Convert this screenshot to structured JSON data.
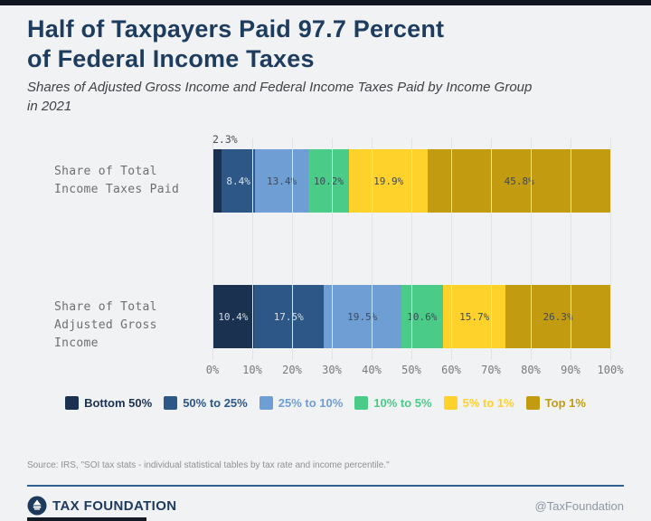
{
  "colors": {
    "background": "#f1f2f4",
    "accent_navy": "#1d3c5e",
    "divider_blue": "#2e6093",
    "grid_line": "#e2e3e7"
  },
  "header": {
    "title": "Half of Taxpayers Paid 97.7 Percent\nof Federal Income Taxes",
    "subtitle": "Shares of Adjusted Gross Income and Federal Income Taxes Paid by Income Group\nin 2021"
  },
  "chart_data": {
    "type": "bar",
    "orientation": "horizontal",
    "stacked": true,
    "unit": "%",
    "categories": [
      "Share of Total\nIncome Taxes Paid",
      "Share of Total\nAdjusted Gross Income"
    ],
    "series": [
      {
        "name": "Bottom 50%",
        "color": "#1a3150",
        "label_style": "light",
        "values": [
          2.3,
          10.4
        ]
      },
      {
        "name": "50% to 25%",
        "color": "#2c5787",
        "label_style": "light",
        "values": [
          8.4,
          17.5
        ]
      },
      {
        "name": "25% to 10%",
        "color": "#6f9ed4",
        "label_style": "dark",
        "values": [
          13.4,
          19.5
        ]
      },
      {
        "name": "10% to 5%",
        "color": "#4acb88",
        "label_style": "dark",
        "values": [
          10.2,
          10.6
        ]
      },
      {
        "name": "5% to 1%",
        "color": "#ffd12b",
        "label_style": "dark",
        "values": [
          19.9,
          15.7
        ]
      },
      {
        "name": "Top 1%",
        "color": "#c39b11",
        "label_style": "dark",
        "values": [
          45.8,
          26.3
        ]
      }
    ],
    "x_ticks": [
      "0%",
      "10%",
      "20%",
      "30%",
      "40%",
      "50%",
      "60%",
      "70%",
      "80%",
      "90%",
      "100%"
    ],
    "xlim": [
      0,
      100
    ],
    "grid": true,
    "legend_position": "bottom",
    "outside_label_threshold": 4
  },
  "source_line": "Source: IRS, \"SOI tax stats - individual statistical tables by tax rate and income percentile.\"",
  "footer": {
    "brand": "TAX FOUNDATION",
    "handle": "@TaxFoundation"
  }
}
